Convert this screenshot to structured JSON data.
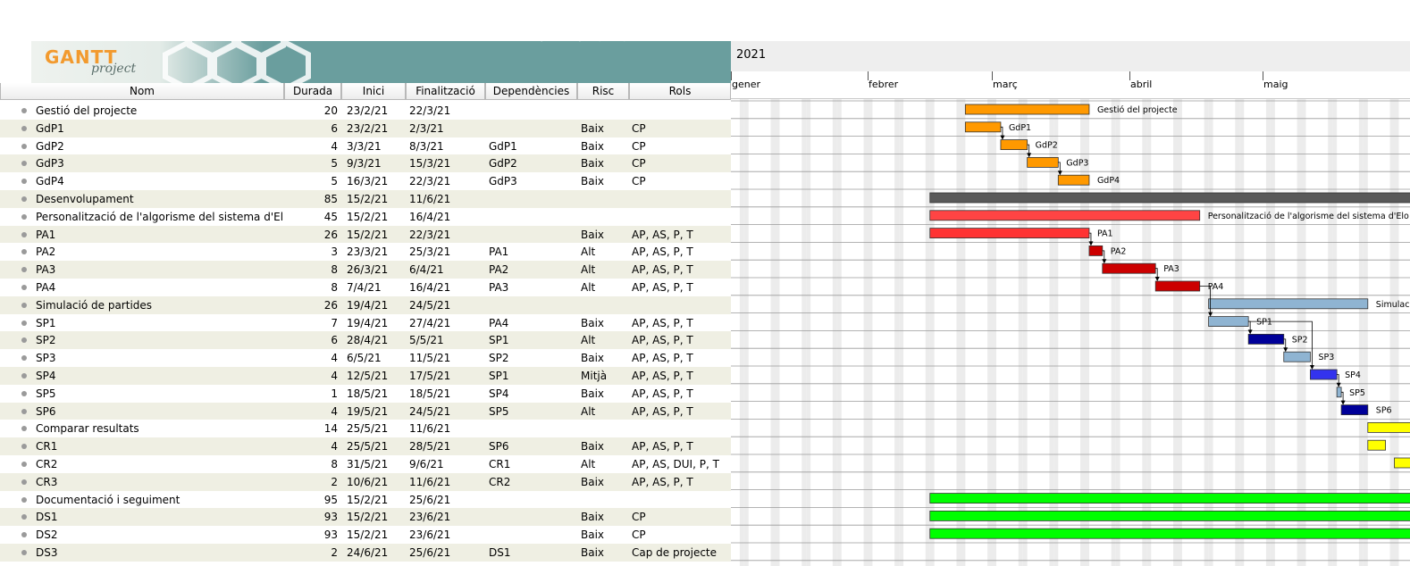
{
  "app": {
    "logo_main": "GANTT",
    "logo_sub": "project"
  },
  "columns": {
    "nom": "Nom",
    "durada": "Durada",
    "inici": "Inici",
    "final": "Finalització",
    "dependencies": "Dependències",
    "risc": "Risc",
    "rols": "Rols"
  },
  "tasks": [
    {
      "nom": "Gestió del projecte",
      "durada": "20",
      "inici": "23/2/21",
      "final": "22/3/21",
      "dep": "",
      "risc": "",
      "rols": ""
    },
    {
      "nom": "GdP1",
      "durada": "6",
      "inici": "23/2/21",
      "final": "2/3/21",
      "dep": "",
      "risc": "Baix",
      "rols": "CP"
    },
    {
      "nom": "GdP2",
      "durada": "4",
      "inici": "3/3/21",
      "final": "8/3/21",
      "dep": "GdP1",
      "risc": "Baix",
      "rols": "CP"
    },
    {
      "nom": "GdP3",
      "durada": "5",
      "inici": "9/3/21",
      "final": "15/3/21",
      "dep": "GdP2",
      "risc": "Baix",
      "rols": "CP"
    },
    {
      "nom": "GdP4",
      "durada": "5",
      "inici": "16/3/21",
      "final": "22/3/21",
      "dep": "GdP3",
      "risc": "Baix",
      "rols": "CP"
    },
    {
      "nom": "Desenvolupament",
      "durada": "85",
      "inici": "15/2/21",
      "final": "11/6/21",
      "dep": "",
      "risc": "",
      "rols": ""
    },
    {
      "nom": "Personalització de l'algorisme del sistema d'Elo",
      "durada": "45",
      "inici": "15/2/21",
      "final": "16/4/21",
      "dep": "",
      "risc": "",
      "rols": ""
    },
    {
      "nom": "PA1",
      "durada": "26",
      "inici": "15/2/21",
      "final": "22/3/21",
      "dep": "",
      "risc": "Baix",
      "rols": "AP, AS, P, T"
    },
    {
      "nom": "PA2",
      "durada": "3",
      "inici": "23/3/21",
      "final": "25/3/21",
      "dep": "PA1",
      "risc": "Alt",
      "rols": "AP, AS, P, T"
    },
    {
      "nom": "PA3",
      "durada": "8",
      "inici": "26/3/21",
      "final": "6/4/21",
      "dep": "PA2",
      "risc": "Alt",
      "rols": "AP, AS, P, T"
    },
    {
      "nom": "PA4",
      "durada": "8",
      "inici": "7/4/21",
      "final": "16/4/21",
      "dep": "PA3",
      "risc": "Alt",
      "rols": "AP, AS, P, T"
    },
    {
      "nom": "Simulació de partides",
      "durada": "26",
      "inici": "19/4/21",
      "final": "24/5/21",
      "dep": "",
      "risc": "",
      "rols": ""
    },
    {
      "nom": "SP1",
      "durada": "7",
      "inici": "19/4/21",
      "final": "27/4/21",
      "dep": "PA4",
      "risc": "Baix",
      "rols": "AP, AS, P, T"
    },
    {
      "nom": "SP2",
      "durada": "6",
      "inici": "28/4/21",
      "final": "5/5/21",
      "dep": "SP1",
      "risc": "Alt",
      "rols": "AP, AS, P, T"
    },
    {
      "nom": "SP3",
      "durada": "4",
      "inici": "6/5/21",
      "final": "11/5/21",
      "dep": "SP2",
      "risc": "Baix",
      "rols": "AP, AS, P, T"
    },
    {
      "nom": "SP4",
      "durada": "4",
      "inici": "12/5/21",
      "final": "17/5/21",
      "dep": "SP1",
      "risc": "Mitjà",
      "rols": "AP, AS, P, T"
    },
    {
      "nom": "SP5",
      "durada": "1",
      "inici": "18/5/21",
      "final": "18/5/21",
      "dep": "SP4",
      "risc": "Baix",
      "rols": "AP, AS, P, T"
    },
    {
      "nom": "SP6",
      "durada": "4",
      "inici": "19/5/21",
      "final": "24/5/21",
      "dep": "SP5",
      "risc": "Alt",
      "rols": "AP, AS, P, T"
    },
    {
      "nom": "Comparar resultats",
      "durada": "14",
      "inici": "25/5/21",
      "final": "11/6/21",
      "dep": "",
      "risc": "",
      "rols": ""
    },
    {
      "nom": "CR1",
      "durada": "4",
      "inici": "25/5/21",
      "final": "28/5/21",
      "dep": "SP6",
      "risc": "Baix",
      "rols": "AP, AS, P, T"
    },
    {
      "nom": "CR2",
      "durada": "8",
      "inici": "31/5/21",
      "final": "9/6/21",
      "dep": "CR1",
      "risc": "Alt",
      "rols": "AP, AS, DUI, P, T"
    },
    {
      "nom": "CR3",
      "durada": "2",
      "inici": "10/6/21",
      "final": "11/6/21",
      "dep": "CR2",
      "risc": "Baix",
      "rols": "AP, AS, P, T"
    },
    {
      "nom": "Documentació i seguiment",
      "durada": "95",
      "inici": "15/2/21",
      "final": "25/6/21",
      "dep": "",
      "risc": "",
      "rols": ""
    },
    {
      "nom": "DS1",
      "durada": "93",
      "inici": "15/2/21",
      "final": "23/6/21",
      "dep": "",
      "risc": "Baix",
      "rols": "CP"
    },
    {
      "nom": "DS2",
      "durada": "93",
      "inici": "15/2/21",
      "final": "23/6/21",
      "dep": "",
      "risc": "Baix",
      "rols": "CP"
    },
    {
      "nom": "DS3",
      "durada": "2",
      "inici": "24/6/21",
      "final": "25/6/21",
      "dep": "DS1",
      "risc": "Baix",
      "rols": "Cap de projecte"
    }
  ],
  "timeline": {
    "year": "2021",
    "months": [
      "gener",
      "febrer",
      "març",
      "abril",
      "maig"
    ]
  },
  "bars": [
    {
      "label": "Gestió del projecte",
      "color": "#ff9900",
      "start": "2021-02-23",
      "end": "2021-03-22"
    },
    {
      "label": "GdP1",
      "color": "#ff9900",
      "start": "2021-02-23",
      "end": "2021-03-02"
    },
    {
      "label": "GdP2",
      "color": "#ff9900",
      "start": "2021-03-03",
      "end": "2021-03-08"
    },
    {
      "label": "GdP3",
      "color": "#ff9900",
      "start": "2021-03-09",
      "end": "2021-03-15"
    },
    {
      "label": "GdP4",
      "color": "#ff9900",
      "start": "2021-03-16",
      "end": "2021-03-22"
    },
    {
      "label": "",
      "color": "#595959",
      "start": "2021-02-15",
      "end": "2021-06-11"
    },
    {
      "label": "Personalització de l'algorisme del sistema d'Elo",
      "color": "#ff4444",
      "start": "2021-02-15",
      "end": "2021-04-16"
    },
    {
      "label": "PA1",
      "color": "#ff3333",
      "start": "2021-02-15",
      "end": "2021-03-22"
    },
    {
      "label": "PA2",
      "color": "#cc0000",
      "start": "2021-03-23",
      "end": "2021-03-25"
    },
    {
      "label": "PA3",
      "color": "#cc0000",
      "start": "2021-03-26",
      "end": "2021-04-06"
    },
    {
      "label": "PA4",
      "color": "#cc0000",
      "start": "2021-04-07",
      "end": "2021-04-16"
    },
    {
      "label": "Simulació de partides",
      "color": "#8fb4d2",
      "start": "2021-04-19",
      "end": "2021-05-24"
    },
    {
      "label": "SP1",
      "color": "#8fb4d2",
      "start": "2021-04-19",
      "end": "2021-04-27"
    },
    {
      "label": "SP2",
      "color": "#000099",
      "start": "2021-04-28",
      "end": "2021-05-05"
    },
    {
      "label": "SP3",
      "color": "#8fb4d2",
      "start": "2021-05-06",
      "end": "2021-05-11"
    },
    {
      "label": "SP4",
      "color": "#3333ee",
      "start": "2021-05-12",
      "end": "2021-05-17"
    },
    {
      "label": "SP5",
      "color": "#8fb4d2",
      "start": "2021-05-18",
      "end": "2021-05-18"
    },
    {
      "label": "SP6",
      "color": "#000099",
      "start": "2021-05-19",
      "end": "2021-05-24"
    },
    {
      "label": "",
      "color": "#ffff00",
      "start": "2021-05-25",
      "end": "2021-06-11"
    },
    {
      "label": "",
      "color": "#ffff00",
      "start": "2021-05-25",
      "end": "2021-05-28"
    },
    {
      "label": "",
      "color": "#ffff00",
      "start": "2021-05-31",
      "end": "2021-06-09"
    },
    {
      "label": "",
      "color": "#ffff00",
      "start": "2021-06-10",
      "end": "2021-06-11"
    },
    {
      "label": "",
      "color": "#00ff00",
      "start": "2021-02-15",
      "end": "2021-06-25"
    },
    {
      "label": "",
      "color": "#00ff00",
      "start": "2021-02-15",
      "end": "2021-06-23"
    },
    {
      "label": "",
      "color": "#00ff00",
      "start": "2021-02-15",
      "end": "2021-06-23"
    },
    {
      "label": "",
      "color": "#00ff00",
      "start": "2021-06-24",
      "end": "2021-06-25"
    }
  ]
}
